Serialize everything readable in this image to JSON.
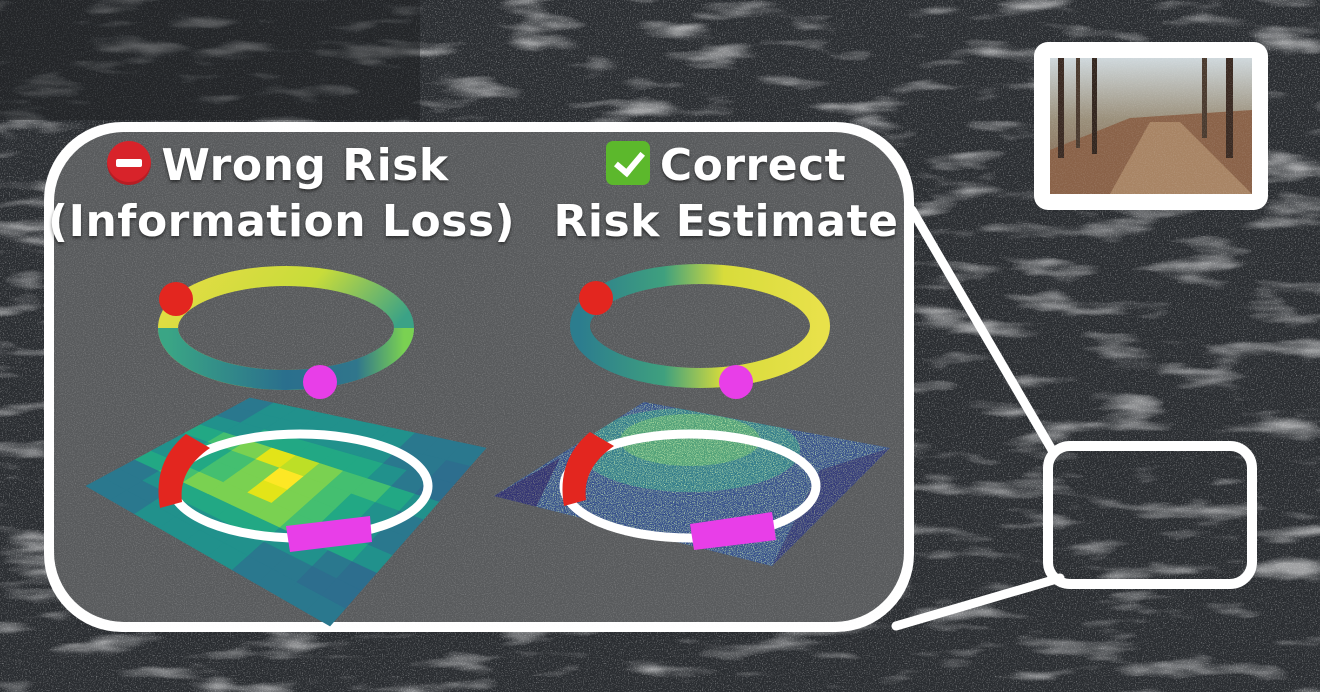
{
  "left_panel": {
    "title_line1": "Wrong Risk",
    "title_line2": "(Information Loss)",
    "title_icon": "no-entry-icon"
  },
  "right_panel": {
    "title_line1": "Correct",
    "title_line2": "Risk Estimate",
    "title_icon": "check-mark-icon"
  },
  "colors": {
    "background": "#2a2d30",
    "callout_frame": "#ffffff",
    "callout_fill": "#57585a",
    "marker_red": "#e3261f",
    "marker_magenta": "#e83ee8",
    "viridis_dark": "#440154",
    "viridis_mid": "#21918c",
    "viridis_light": "#fde725"
  }
}
